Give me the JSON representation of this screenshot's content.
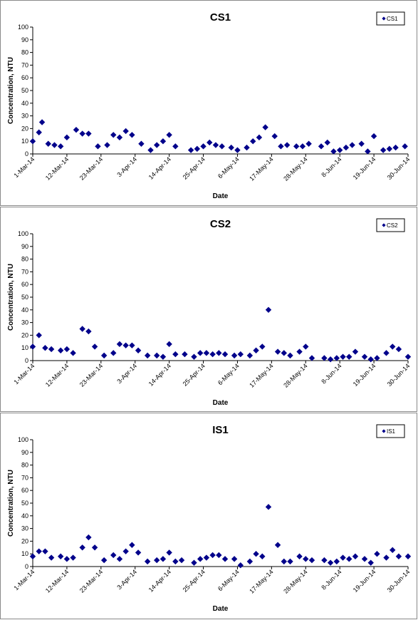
{
  "x_ticks": [
    "1-Mar-14",
    "12-Mar-14",
    "23-Mar-14",
    "3-Apr-14",
    "14-Apr-14",
    "25-Apr-14",
    "6-May-14",
    "17-May-14",
    "28-May-14",
    "8-Jun-14",
    "19-Jun-14",
    "30-Jun-14"
  ],
  "y_ticks": [
    "0",
    "10",
    "20",
    "30",
    "40",
    "50",
    "60",
    "70",
    "80",
    "90",
    "100"
  ],
  "marker_color": "#00008B",
  "chart_data": [
    {
      "type": "scatter",
      "title": "CS1",
      "xlabel": "Date",
      "ylabel": "Concentration, NTU",
      "ylim": [
        0,
        100
      ],
      "xlim": [
        "2014-03-01",
        "2014-06-30"
      ],
      "legend": "top-right",
      "series": [
        {
          "name": "CS1",
          "points": [
            [
              "2014-03-01",
              10
            ],
            [
              "2014-03-03",
              17
            ],
            [
              "2014-03-04",
              25
            ],
            [
              "2014-03-06",
              8
            ],
            [
              "2014-03-08",
              7
            ],
            [
              "2014-03-10",
              6
            ],
            [
              "2014-03-12",
              13
            ],
            [
              "2014-03-15",
              19
            ],
            [
              "2014-03-17",
              16
            ],
            [
              "2014-03-19",
              16
            ],
            [
              "2014-03-22",
              6
            ],
            [
              "2014-03-25",
              7
            ],
            [
              "2014-03-27",
              15
            ],
            [
              "2014-03-29",
              13
            ],
            [
              "2014-03-31",
              18
            ],
            [
              "2014-04-02",
              15
            ],
            [
              "2014-04-05",
              8
            ],
            [
              "2014-04-08",
              3
            ],
            [
              "2014-04-10",
              7
            ],
            [
              "2014-04-12",
              10
            ],
            [
              "2014-04-14",
              15
            ],
            [
              "2014-04-16",
              6
            ],
            [
              "2014-04-21",
              3
            ],
            [
              "2014-04-23",
              4
            ],
            [
              "2014-04-25",
              6
            ],
            [
              "2014-04-27",
              9
            ],
            [
              "2014-04-29",
              7
            ],
            [
              "2014-05-01",
              6
            ],
            [
              "2014-05-04",
              5
            ],
            [
              "2014-05-06",
              3
            ],
            [
              "2014-05-09",
              5
            ],
            [
              "2014-05-11",
              10
            ],
            [
              "2014-05-13",
              13
            ],
            [
              "2014-05-15",
              21
            ],
            [
              "2014-05-18",
              14
            ],
            [
              "2014-05-20",
              6
            ],
            [
              "2014-05-22",
              7
            ],
            [
              "2014-05-25",
              6
            ],
            [
              "2014-05-27",
              6
            ],
            [
              "2014-05-29",
              8
            ],
            [
              "2014-06-02",
              6
            ],
            [
              "2014-06-04",
              9
            ],
            [
              "2014-06-06",
              2
            ],
            [
              "2014-06-08",
              3
            ],
            [
              "2014-06-10",
              5
            ],
            [
              "2014-06-12",
              7
            ],
            [
              "2014-06-15",
              8
            ],
            [
              "2014-06-17",
              2
            ],
            [
              "2014-06-19",
              14
            ],
            [
              "2014-06-22",
              3
            ],
            [
              "2014-06-24",
              4
            ],
            [
              "2014-06-26",
              5
            ],
            [
              "2014-06-29",
              6
            ]
          ]
        }
      ]
    },
    {
      "type": "scatter",
      "title": "CS2",
      "xlabel": "Date",
      "ylabel": "Concentration, NTU",
      "ylim": [
        0,
        100
      ],
      "xlim": [
        "2014-03-01",
        "2014-06-30"
      ],
      "legend": "top-right",
      "series": [
        {
          "name": "CS2",
          "points": [
            [
              "2014-03-01",
              11
            ],
            [
              "2014-03-03",
              20
            ],
            [
              "2014-03-05",
              10
            ],
            [
              "2014-03-07",
              9
            ],
            [
              "2014-03-10",
              8
            ],
            [
              "2014-03-12",
              9
            ],
            [
              "2014-03-14",
              6
            ],
            [
              "2014-03-17",
              25
            ],
            [
              "2014-03-19",
              23
            ],
            [
              "2014-03-21",
              11
            ],
            [
              "2014-03-24",
              4
            ],
            [
              "2014-03-27",
              6
            ],
            [
              "2014-03-29",
              13
            ],
            [
              "2014-03-31",
              12
            ],
            [
              "2014-04-02",
              12
            ],
            [
              "2014-04-04",
              8
            ],
            [
              "2014-04-07",
              4
            ],
            [
              "2014-04-10",
              4
            ],
            [
              "2014-04-12",
              3
            ],
            [
              "2014-04-14",
              13
            ],
            [
              "2014-04-16",
              5
            ],
            [
              "2014-04-19",
              5
            ],
            [
              "2014-04-22",
              3
            ],
            [
              "2014-04-24",
              6
            ],
            [
              "2014-04-26",
              6
            ],
            [
              "2014-04-28",
              5
            ],
            [
              "2014-04-30",
              6
            ],
            [
              "2014-05-02",
              5
            ],
            [
              "2014-05-05",
              4
            ],
            [
              "2014-05-07",
              5
            ],
            [
              "2014-05-10",
              4
            ],
            [
              "2014-05-12",
              8
            ],
            [
              "2014-05-14",
              11
            ],
            [
              "2014-05-16",
              40
            ],
            [
              "2014-05-19",
              7
            ],
            [
              "2014-05-21",
              6
            ],
            [
              "2014-05-23",
              4
            ],
            [
              "2014-05-26",
              7
            ],
            [
              "2014-05-28",
              11
            ],
            [
              "2014-05-30",
              2
            ],
            [
              "2014-06-03",
              2
            ],
            [
              "2014-06-05",
              1
            ],
            [
              "2014-06-07",
              2
            ],
            [
              "2014-06-09",
              3
            ],
            [
              "2014-06-11",
              3
            ],
            [
              "2014-06-13",
              7
            ],
            [
              "2014-06-16",
              3
            ],
            [
              "2014-06-18",
              1
            ],
            [
              "2014-06-20",
              2
            ],
            [
              "2014-06-23",
              6
            ],
            [
              "2014-06-25",
              11
            ],
            [
              "2014-06-27",
              9
            ],
            [
              "2014-06-30",
              3
            ]
          ]
        }
      ]
    },
    {
      "type": "scatter",
      "title": "IS1",
      "xlabel": "Date",
      "ylabel": "Concentration, NTU",
      "ylim": [
        0,
        100
      ],
      "xlim": [
        "2014-03-01",
        "2014-06-30"
      ],
      "legend": "top-right",
      "series": [
        {
          "name": "IS1",
          "points": [
            [
              "2014-03-01",
              8
            ],
            [
              "2014-03-03",
              12
            ],
            [
              "2014-03-05",
              12
            ],
            [
              "2014-03-07",
              7
            ],
            [
              "2014-03-10",
              8
            ],
            [
              "2014-03-12",
              6
            ],
            [
              "2014-03-14",
              7
            ],
            [
              "2014-03-17",
              15
            ],
            [
              "2014-03-19",
              23
            ],
            [
              "2014-03-21",
              15
            ],
            [
              "2014-03-24",
              5
            ],
            [
              "2014-03-27",
              9
            ],
            [
              "2014-03-29",
              6
            ],
            [
              "2014-03-31",
              12
            ],
            [
              "2014-04-02",
              17
            ],
            [
              "2014-04-04",
              11
            ],
            [
              "2014-04-07",
              4
            ],
            [
              "2014-04-10",
              5
            ],
            [
              "2014-04-12",
              6
            ],
            [
              "2014-04-14",
              11
            ],
            [
              "2014-04-16",
              4
            ],
            [
              "2014-04-18",
              5
            ],
            [
              "2014-04-22",
              3
            ],
            [
              "2014-04-24",
              6
            ],
            [
              "2014-04-26",
              7
            ],
            [
              "2014-04-28",
              9
            ],
            [
              "2014-04-30",
              9
            ],
            [
              "2014-05-02",
              6
            ],
            [
              "2014-05-05",
              6
            ],
            [
              "2014-05-07",
              1
            ],
            [
              "2014-05-10",
              4
            ],
            [
              "2014-05-12",
              10
            ],
            [
              "2014-05-14",
              8
            ],
            [
              "2014-05-16",
              47
            ],
            [
              "2014-05-19",
              17
            ],
            [
              "2014-05-21",
              4
            ],
            [
              "2014-05-23",
              4
            ],
            [
              "2014-05-26",
              8
            ],
            [
              "2014-05-28",
              6
            ],
            [
              "2014-05-30",
              5
            ],
            [
              "2014-06-03",
              5
            ],
            [
              "2014-06-05",
              3
            ],
            [
              "2014-06-07",
              4
            ],
            [
              "2014-06-09",
              7
            ],
            [
              "2014-06-11",
              6
            ],
            [
              "2014-06-13",
              8
            ],
            [
              "2014-06-16",
              6
            ],
            [
              "2014-06-18",
              3
            ],
            [
              "2014-06-20",
              10
            ],
            [
              "2014-06-23",
              7
            ],
            [
              "2014-06-25",
              13
            ],
            [
              "2014-06-27",
              8
            ],
            [
              "2014-06-30",
              8
            ]
          ]
        }
      ]
    }
  ]
}
